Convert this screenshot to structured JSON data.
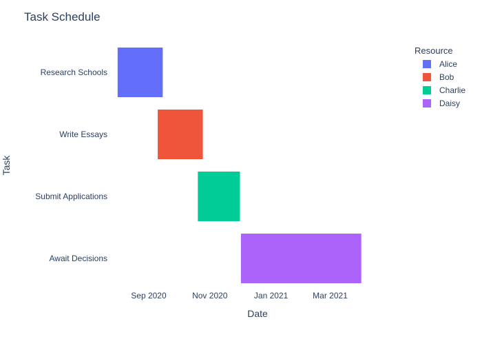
{
  "chart_data": {
    "type": "gantt",
    "title": "Task Schedule",
    "xlabel": "Date",
    "ylabel": "Task",
    "grid": false,
    "legend_placement": "top-right",
    "legend_title": "Resource",
    "x_range": [
      "2020-07-28",
      "2021-05-09"
    ],
    "x_ticks": [
      {
        "date": "2020-09-01",
        "label": "Sep 2020"
      },
      {
        "date": "2020-11-01",
        "label": "Nov 2020"
      },
      {
        "date": "2021-01-01",
        "label": "Jan 2021"
      },
      {
        "date": "2021-03-01",
        "label": "Mar 2021"
      }
    ],
    "tasks": [
      {
        "task": "Research Schools",
        "resource": "Alice",
        "start": "2020-08-01",
        "finish": "2020-09-15"
      },
      {
        "task": "Write Essays",
        "resource": "Bob",
        "start": "2020-09-10",
        "finish": "2020-10-25"
      },
      {
        "task": "Submit Applications",
        "resource": "Charlie",
        "start": "2020-10-20",
        "finish": "2020-12-01"
      },
      {
        "task": "Await Decisions",
        "resource": "Daisy",
        "start": "2020-12-02",
        "finish": "2021-04-01"
      }
    ],
    "series": [
      {
        "name": "Alice",
        "color": "#636efa"
      },
      {
        "name": "Bob",
        "color": "#ef553b"
      },
      {
        "name": "Charlie",
        "color": "#00cc96"
      },
      {
        "name": "Daisy",
        "color": "#ab63fa"
      }
    ]
  }
}
